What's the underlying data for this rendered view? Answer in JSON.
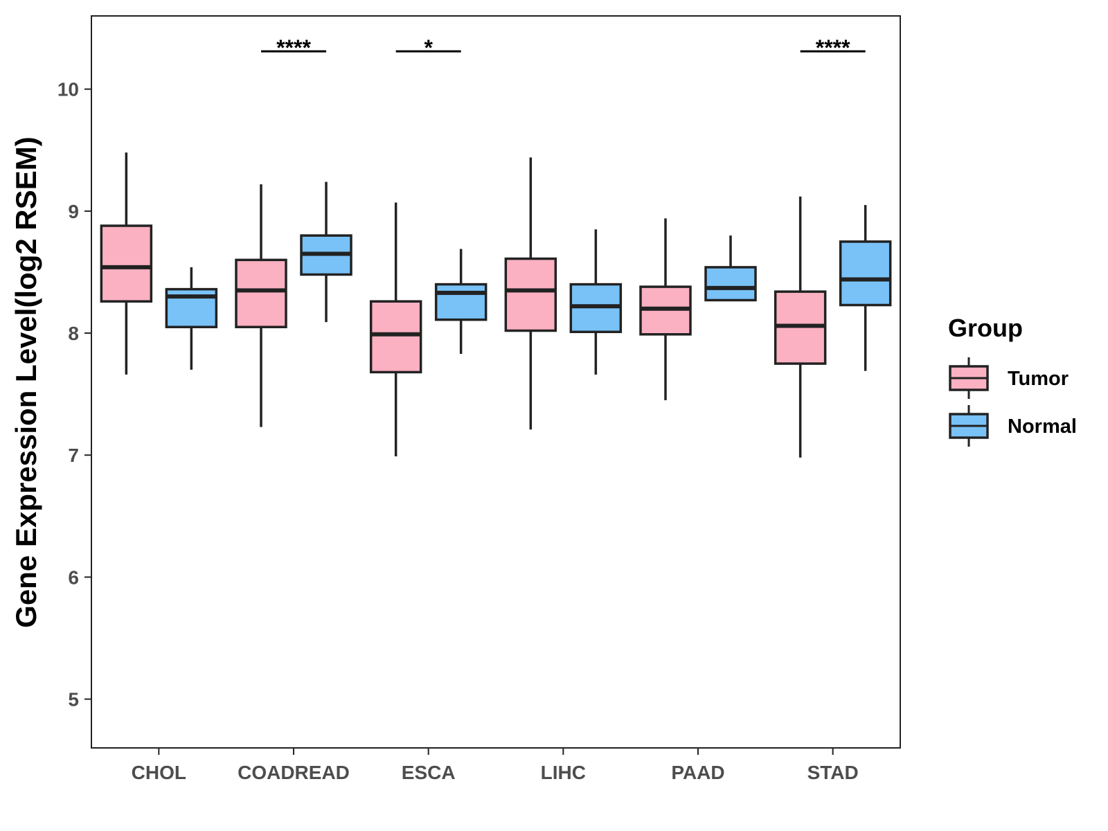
{
  "chart_data": {
    "type": "boxplot",
    "title": "",
    "xlabel": "",
    "ylabel": "Gene Expression Level(log2 RSEM)",
    "ylim": [
      4.6,
      10.6
    ],
    "yticks": [
      5,
      6,
      7,
      8,
      9,
      10
    ],
    "grid": false,
    "categories": [
      "CHOL",
      "COADREAD",
      "ESCA",
      "LIHC",
      "PAAD",
      "STAD"
    ],
    "legend": {
      "title": "Group",
      "position": "right",
      "entries": [
        {
          "name": "Tumor",
          "color": "#FBB1C2"
        },
        {
          "name": "Normal",
          "color": "#79C2F8"
        }
      ]
    },
    "series": [
      {
        "name": "Tumor",
        "color": "#FBB1C2",
        "boxes": [
          {
            "category": "CHOL",
            "whisker_low": 7.66,
            "q1": 8.26,
            "median": 8.54,
            "q3": 8.88,
            "whisker_high": 9.48
          },
          {
            "category": "COADREAD",
            "whisker_low": 7.23,
            "q1": 8.05,
            "median": 8.35,
            "q3": 8.6,
            "whisker_high": 9.22
          },
          {
            "category": "ESCA",
            "whisker_low": 6.99,
            "q1": 7.68,
            "median": 7.99,
            "q3": 8.26,
            "whisker_high": 9.07
          },
          {
            "category": "LIHC",
            "whisker_low": 7.21,
            "q1": 8.02,
            "median": 8.35,
            "q3": 8.61,
            "whisker_high": 9.44
          },
          {
            "category": "PAAD",
            "whisker_low": 7.45,
            "q1": 7.99,
            "median": 8.2,
            "q3": 8.38,
            "whisker_high": 8.94
          },
          {
            "category": "STAD",
            "whisker_low": 6.98,
            "q1": 7.75,
            "median": 8.06,
            "q3": 8.34,
            "whisker_high": 9.12
          }
        ]
      },
      {
        "name": "Normal",
        "color": "#79C2F8",
        "boxes": [
          {
            "category": "CHOL",
            "whisker_low": 7.7,
            "q1": 8.05,
            "median": 8.3,
            "q3": 8.36,
            "whisker_high": 8.54
          },
          {
            "category": "COADREAD",
            "whisker_low": 8.09,
            "q1": 8.48,
            "median": 8.65,
            "q3": 8.8,
            "whisker_high": 9.24
          },
          {
            "category": "ESCA",
            "whisker_low": 7.83,
            "q1": 8.11,
            "median": 8.33,
            "q3": 8.4,
            "whisker_high": 8.69
          },
          {
            "category": "LIHC",
            "whisker_low": 7.66,
            "q1": 8.01,
            "median": 8.22,
            "q3": 8.4,
            "whisker_high": 8.85
          },
          {
            "category": "PAAD",
            "whisker_low": 8.27,
            "q1": 8.27,
            "median": 8.37,
            "q3": 8.54,
            "whisker_high": 8.8
          },
          {
            "category": "STAD",
            "whisker_low": 7.69,
            "q1": 8.23,
            "median": 8.44,
            "q3": 8.75,
            "whisker_high": 9.05
          }
        ]
      }
    ],
    "annotations": [
      {
        "category": "COADREAD",
        "label": "****",
        "y": 10.31
      },
      {
        "category": "ESCA",
        "label": "*",
        "y": 10.31
      },
      {
        "category": "STAD",
        "label": "****",
        "y": 10.31
      }
    ]
  }
}
